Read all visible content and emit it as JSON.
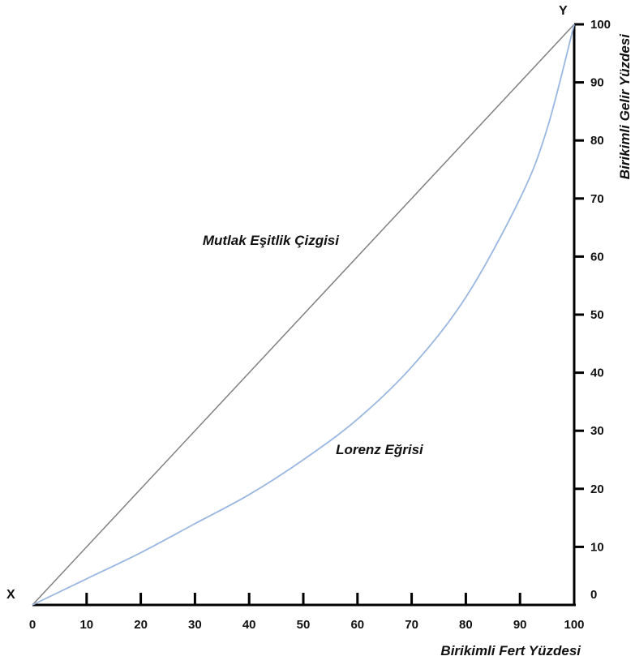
{
  "chart_data": {
    "type": "line",
    "xlabel": "Birikimli Fert Yüzdesi",
    "ylabel": "Birikimli Gelir Yüzdesi",
    "xlim": [
      0,
      100
    ],
    "ylim": [
      0,
      100
    ],
    "xticks": [
      "0",
      "10",
      "20",
      "30",
      "40",
      "50",
      "60",
      "70",
      "80",
      "90",
      "100"
    ],
    "yticks": [
      "0",
      "10",
      "20",
      "30",
      "40",
      "50",
      "60",
      "70",
      "80",
      "90",
      "100"
    ],
    "corner_labels": {
      "origin": "X",
      "top_right": "Y"
    },
    "annotations": [
      {
        "text": "Mutlak Eşitlik Çizgisi",
        "x": 44,
        "y": 62
      },
      {
        "text": "Lorenz Eğrisi",
        "x": 56,
        "y": 26
      }
    ],
    "series": [
      {
        "name": "Mutlak Eşitlik Çizgisi",
        "color": "#808080",
        "x": [
          0,
          100
        ],
        "y": [
          0,
          100
        ]
      },
      {
        "name": "Lorenz Eğrisi",
        "color": "#9ab7e0",
        "x": [
          0,
          10,
          20,
          30,
          40,
          50,
          60,
          70,
          80,
          90,
          95,
          100
        ],
        "y": [
          0,
          4.5,
          9,
          14,
          19,
          25,
          32,
          41,
          53,
          70,
          82,
          100
        ]
      }
    ],
    "grid": false,
    "legend": "none"
  }
}
